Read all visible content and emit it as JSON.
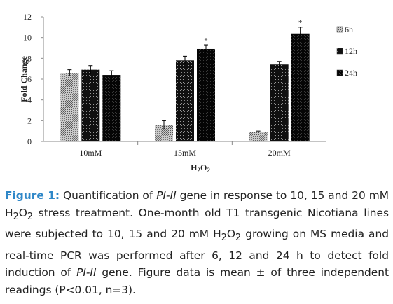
{
  "chart_data": {
    "type": "bar",
    "categories": [
      "10mM",
      "15mM",
      "20mM"
    ],
    "series": [
      {
        "name": "6h",
        "values": [
          6.6,
          1.6,
          0.9
        ],
        "errors": [
          0.3,
          0.4,
          0.1
        ]
      },
      {
        "name": "12h",
        "values": [
          6.9,
          7.8,
          7.4
        ],
        "errors": [
          0.4,
          0.4,
          0.3
        ]
      },
      {
        "name": "24h",
        "values": [
          6.4,
          8.9,
          10.4
        ],
        "errors": [
          0.4,
          0.4,
          0.6
        ]
      }
    ],
    "significance": [
      {
        "category": "15mM",
        "series": "24h",
        "mark": "*"
      },
      {
        "category": "20mM",
        "series": "24h",
        "mark": "*"
      }
    ],
    "ylabel": "Fold Change",
    "xlabel": "H2O2",
    "ylim": [
      0,
      12
    ],
    "yticks": [
      0,
      2,
      4,
      6,
      8,
      10,
      12
    ],
    "legend_position": "right",
    "grid": false
  },
  "caption": {
    "figure_label": "Figure 1:",
    "text_1": " Quantification of ",
    "gene_1": "PI-II",
    "text_2": " gene in response to 10, 15 and 20 mM H",
    "sub_1": "2",
    "text_3": "O",
    "sub_2": "2",
    "text_4": " stress treatment. One-month old T1 transgenic Nicotiana lines were subjected to 10, 15 and 20 mM H",
    "sub_3": "2",
    "text_5": "O",
    "sub_4": "2",
    "text_6": " growing on MS media and real-time PCR was performed after 6, 12 and 24 h to detect fold induction of ",
    "gene_2": "PI-II",
    "text_7": " gene. Figure data is mean ± of three independent readings (P<0.01, n=3)."
  }
}
